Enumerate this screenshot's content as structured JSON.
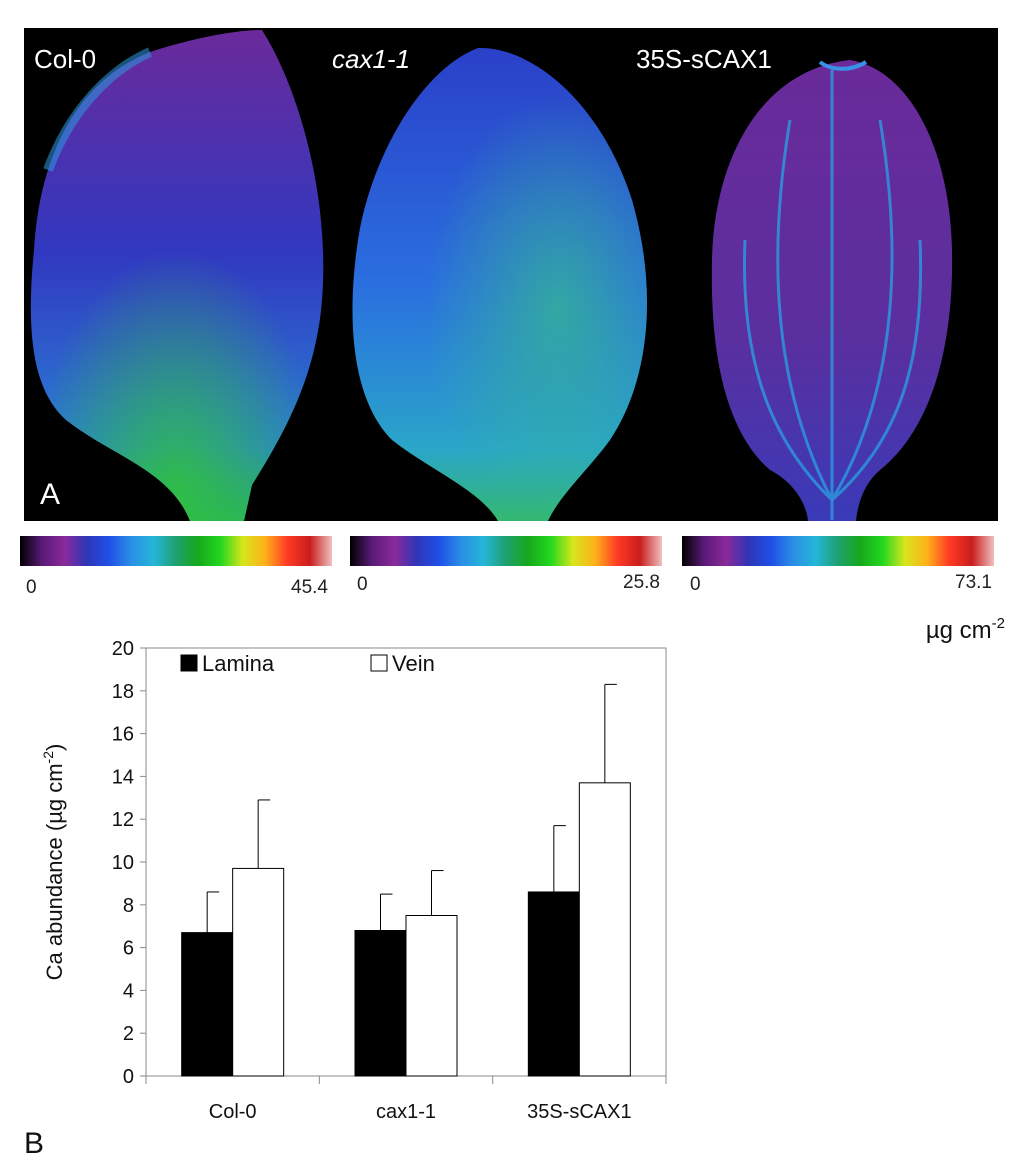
{
  "colors": {
    "lamina": "#000000",
    "vein": "#ffffff",
    "scale_stops": [
      "#000000",
      "#5a1a78",
      "#8a2a9a",
      "#2f35b8",
      "#1f50e6",
      "#2a8fe6",
      "#25b6d8",
      "#1fa070",
      "#17a81c",
      "#23d81f",
      "#d7e61c",
      "#ffb01a",
      "#ff3a24",
      "#c91d1d",
      "#f0c0c0"
    ]
  },
  "panel_a": {
    "label": "A",
    "leaves": [
      {
        "name": "Col-0",
        "italic": false,
        "scale_min": "0",
        "scale_max": "45.4"
      },
      {
        "name": "cax1-1",
        "italic": true,
        "scale_min": "0",
        "scale_max": "25.8"
      },
      {
        "name": "35S-sCAX1",
        "italic": false,
        "scale_min": "0",
        "scale_max": "73.1"
      }
    ],
    "unit_base": "µg cm",
    "unit_sup": "-2"
  },
  "panel_b": {
    "label": "B"
  },
  "chart_data": {
    "type": "bar",
    "categories": [
      "Col-0",
      "cax1-1",
      "35S-sCAX1"
    ],
    "series": [
      {
        "name": "Lamina",
        "values": [
          6.7,
          6.8,
          8.6
        ],
        "errors": [
          1.9,
          1.7,
          3.1
        ]
      },
      {
        "name": "Vein",
        "values": [
          9.7,
          7.5,
          13.7
        ],
        "errors": [
          3.2,
          2.1,
          4.6
        ]
      }
    ],
    "ylabel_base": "Ca abundance (µg cm",
    "ylabel_sup": "-2",
    "ylabel_end": ")",
    "ylim": [
      0,
      20
    ],
    "yticks": [
      "0",
      "2",
      "4",
      "6",
      "8",
      "10",
      "12",
      "14",
      "16",
      "18",
      "20"
    ],
    "legend_position": "top-left",
    "grid": false
  }
}
